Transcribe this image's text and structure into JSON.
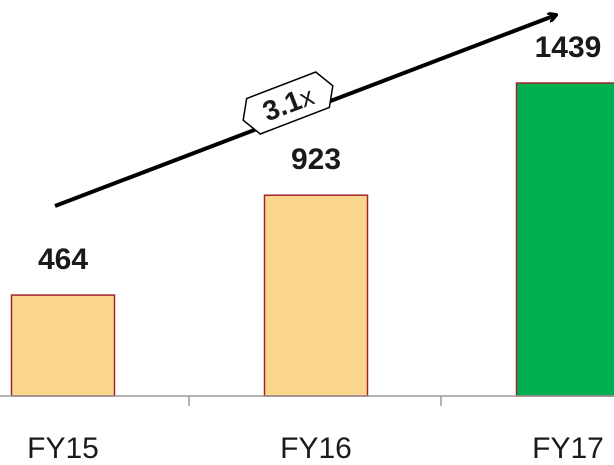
{
  "chart_data": {
    "type": "bar",
    "categories": [
      "FY15",
      "FY16",
      "FY17"
    ],
    "values": [
      464,
      923,
      1439
    ],
    "value_labels": [
      "464",
      "923",
      "1439"
    ],
    "ylim": [
      0,
      1600
    ],
    "grid": false,
    "legend": "none",
    "bar_colors": [
      "#FDD68E",
      "#FDD68E",
      "#00B050"
    ],
    "bar_border_color": "#A0252A",
    "annotation": {
      "multiplier": "3.1",
      "suffix": "x"
    }
  }
}
